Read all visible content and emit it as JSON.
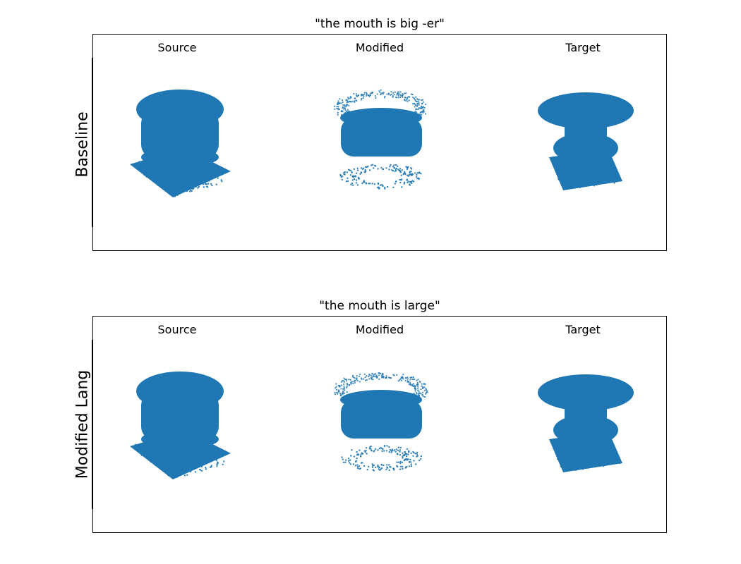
{
  "figure": {
    "rows": [
      {
        "row_label": "Baseline",
        "title": "\"the mouth is big -er\"",
        "columns": [
          "Source",
          "Modified",
          "Target"
        ]
      },
      {
        "row_label": "Modified Lang",
        "title": "\"the mouth is large\"",
        "columns": [
          "Source",
          "Modified",
          "Target"
        ]
      }
    ]
  },
  "colors": {
    "points": "#1f77b4",
    "frame": "#000000",
    "background": "#ffffff"
  }
}
